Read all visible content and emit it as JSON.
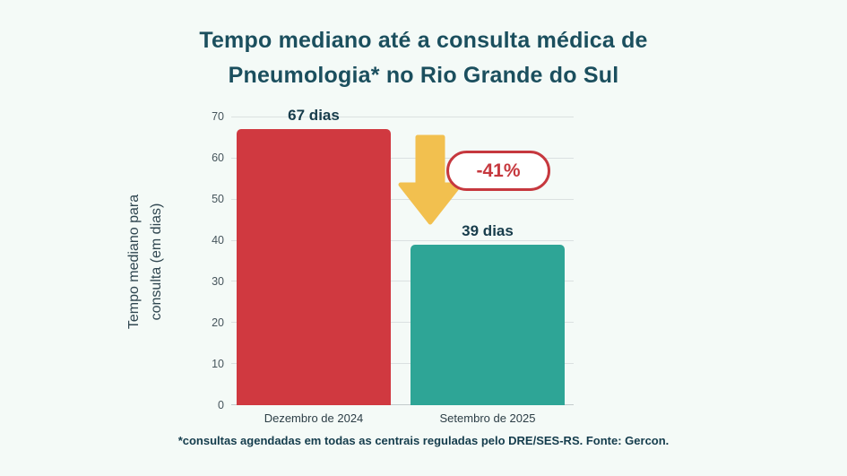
{
  "title": {
    "line1": "Tempo mediano até a consulta médica de",
    "line2": "Pneumologia* no Rio Grande do Sul"
  },
  "footnote": "*consultas agendadas em todas as centrais reguladas pelo DRE/SES-RS. Fonte: Gercon.",
  "annotation": {
    "badge_label": "-41%",
    "arrow_meaning": "decrease"
  },
  "colors": {
    "background": "#f4faf7",
    "bar_dezembro": "#d03940",
    "bar_setembro": "#2ea596",
    "arrow": "#f2c04f",
    "badge": "#c6383e",
    "title_text": "#1b4f5e"
  },
  "chart_data": {
    "type": "bar",
    "title": "Tempo mediano até a consulta médica de Pneumologia* no Rio Grande do Sul",
    "categories": [
      "Dezembro de 2024",
      "Setembro de 2025"
    ],
    "values": [
      67,
      39
    ],
    "value_labels": [
      "67 dias",
      "39 dias"
    ],
    "series_colors": [
      "#d03940",
      "#2ea596"
    ],
    "ylabel": "Tempo mediano para consulta (em dias)",
    "ylabel_line1": "Tempo mediano para",
    "ylabel_line2": "consulta (em dias)",
    "ylim": [
      0,
      70
    ],
    "yticks": [
      0,
      10,
      20,
      30,
      40,
      50,
      60,
      70
    ],
    "grid": true,
    "legend_position": "none",
    "annotation": {
      "text": "-41%",
      "type": "decrease-arrow"
    }
  }
}
